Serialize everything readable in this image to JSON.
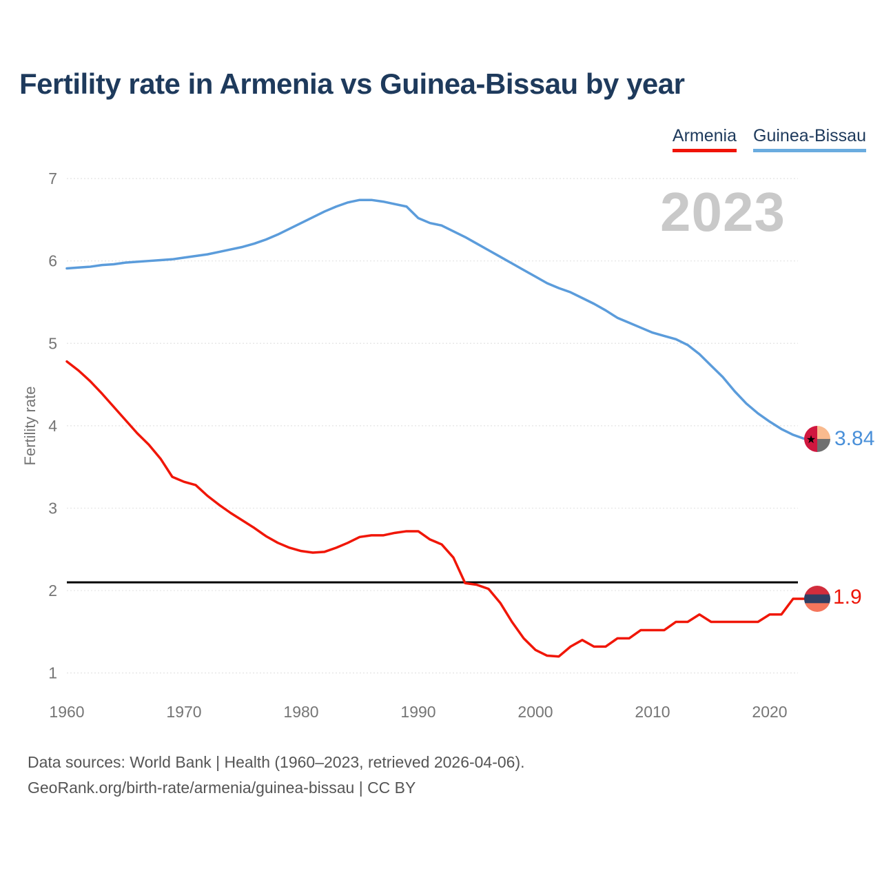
{
  "title": "Fertility rate in Armenia vs Guinea-Bissau by year",
  "legend": {
    "items": [
      {
        "label": "Armenia",
        "color": "#f01307"
      },
      {
        "label": "Guinea-Bissau",
        "color": "#6aacdf"
      }
    ]
  },
  "watermark": "2023",
  "end_labels": {
    "guinea_bissau": "3.84",
    "armenia": "1.9"
  },
  "footer": {
    "line1": "Data sources: World Bank | Health (1960–2023, retrieved 2026-04-06).",
    "line2": "GeoRank.org/birth-rate/armenia/guinea-bissau | CC BY"
  },
  "colors": {
    "title_text": "#1e3a5c",
    "axis_text": "#757575",
    "gridline": "#e3e3e3",
    "watermark": "#c9c9c9",
    "footer_text": "#555555",
    "armenia_line": "#f01607",
    "guinea_bissau_line": "#5b9cdb",
    "reference_line": "#000000",
    "armenia_value_label": "#ed1508",
    "guinea_bissau_value_label": "#4a90d9"
  },
  "flag_markers": {
    "armenia": {
      "type": "horizontal-stripes",
      "stripes": [
        "#d12d3c",
        "#2f3f63",
        "#f4765c"
      ]
    },
    "guinea_bissau": {
      "type": "left-band-star",
      "left": "#d0173f",
      "top_right": "#f9ba8e",
      "bottom_right": "#6f6f6f",
      "star": "#000000"
    }
  },
  "chart_data": {
    "type": "line",
    "title": "Fertility rate in Armenia vs Guinea-Bissau by year",
    "xlabel": "",
    "ylabel": "Fertility rate",
    "current_year_badge": "2023",
    "grid": "horizontal-dashed",
    "legend_position": "top-right",
    "ylim": [
      0.85,
      7.1
    ],
    "y_ticks": [
      1,
      2,
      3,
      4,
      5,
      6,
      7
    ],
    "x_ticks": [
      1960,
      1970,
      1980,
      1990,
      2000,
      2010,
      2020
    ],
    "reference_line": {
      "value": 2.1,
      "color": "#000000",
      "meaning": "replacement level"
    },
    "x": [
      1960,
      1961,
      1962,
      1963,
      1964,
      1965,
      1966,
      1967,
      1968,
      1969,
      1970,
      1971,
      1972,
      1973,
      1974,
      1975,
      1976,
      1977,
      1978,
      1979,
      1980,
      1981,
      1982,
      1983,
      1984,
      1985,
      1986,
      1987,
      1988,
      1989,
      1990,
      1991,
      1992,
      1993,
      1994,
      1995,
      1996,
      1997,
      1998,
      1999,
      2000,
      2001,
      2002,
      2003,
      2004,
      2005,
      2006,
      2007,
      2008,
      2009,
      2010,
      2011,
      2012,
      2013,
      2014,
      2015,
      2016,
      2017,
      2018,
      2019,
      2020,
      2021,
      2022,
      2023
    ],
    "series": [
      {
        "name": "Armenia",
        "color": "#f01607",
        "end_label": "1.9",
        "values": [
          4.78,
          4.67,
          4.54,
          4.39,
          4.23,
          4.07,
          3.91,
          3.77,
          3.6,
          3.38,
          3.32,
          3.28,
          3.15,
          3.04,
          2.94,
          2.85,
          2.76,
          2.66,
          2.58,
          2.52,
          2.48,
          2.46,
          2.47,
          2.52,
          2.58,
          2.65,
          2.67,
          2.67,
          2.7,
          2.72,
          2.72,
          2.62,
          2.56,
          2.4,
          2.09,
          2.07,
          2.02,
          1.85,
          1.62,
          1.42,
          1.28,
          1.21,
          1.2,
          1.32,
          1.4,
          1.32,
          1.32,
          1.42,
          1.42,
          1.52,
          1.52,
          1.52,
          1.62,
          1.62,
          1.71,
          1.62,
          1.62,
          1.62,
          1.62,
          1.62,
          1.71,
          1.71,
          1.9,
          1.9
        ]
      },
      {
        "name": "Guinea-Bissau",
        "color": "#5b9cdb",
        "end_label": "3.84",
        "values": [
          5.91,
          5.92,
          5.93,
          5.95,
          5.96,
          5.98,
          5.99,
          6.0,
          6.01,
          6.02,
          6.04,
          6.06,
          6.08,
          6.11,
          6.14,
          6.17,
          6.21,
          6.26,
          6.32,
          6.39,
          6.46,
          6.53,
          6.6,
          6.66,
          6.71,
          6.74,
          6.74,
          6.72,
          6.69,
          6.66,
          6.52,
          6.46,
          6.43,
          6.36,
          6.29,
          6.21,
          6.13,
          6.05,
          5.97,
          5.89,
          5.81,
          5.73,
          5.67,
          5.62,
          5.55,
          5.48,
          5.4,
          5.31,
          5.25,
          5.19,
          5.13,
          5.09,
          5.05,
          4.98,
          4.87,
          4.73,
          4.59,
          4.42,
          4.27,
          4.15,
          4.05,
          3.96,
          3.89,
          3.84
        ]
      }
    ]
  }
}
